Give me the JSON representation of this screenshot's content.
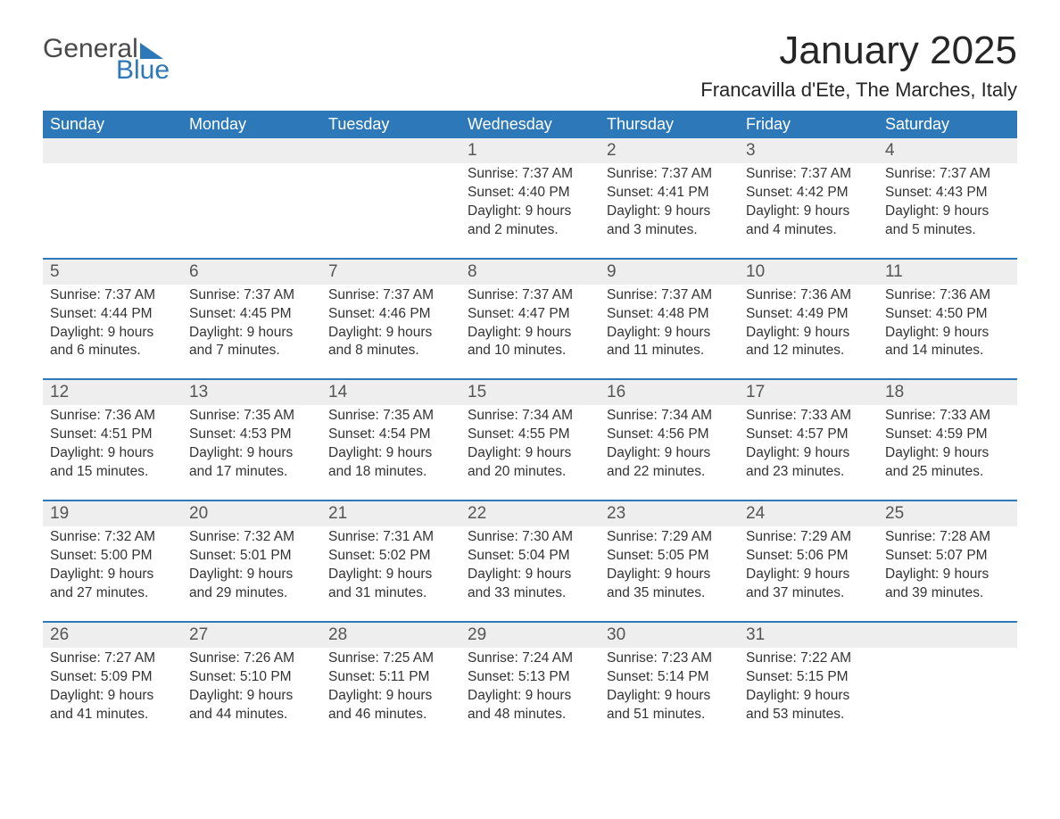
{
  "logo": {
    "line1": "General",
    "line2": "Blue"
  },
  "title": "January 2025",
  "subtitle": "Francavilla d'Ete, The Marches, Italy",
  "colors": {
    "header_bg": "#2d78b8",
    "header_text": "#ffffff",
    "daynum_bg": "#eeeeee",
    "row_border": "#2d78b8",
    "body_text": "#333333",
    "page_bg": "#ffffff",
    "logo_gray": "#4a4a4a",
    "logo_blue": "#2d78b8"
  },
  "typography": {
    "title_fontsize": 44,
    "subtitle_fontsize": 22,
    "header_fontsize": 18,
    "daynum_fontsize": 19,
    "body_fontsize": 15.5,
    "font_family": "Arial"
  },
  "weekdays": [
    "Sunday",
    "Monday",
    "Tuesday",
    "Wednesday",
    "Thursday",
    "Friday",
    "Saturday"
  ],
  "weeks": [
    [
      null,
      null,
      null,
      {
        "n": "1",
        "sunrise": "Sunrise: 7:37 AM",
        "sunset": "Sunset: 4:40 PM",
        "daylight": "Daylight: 9 hours and 2 minutes."
      },
      {
        "n": "2",
        "sunrise": "Sunrise: 7:37 AM",
        "sunset": "Sunset: 4:41 PM",
        "daylight": "Daylight: 9 hours and 3 minutes."
      },
      {
        "n": "3",
        "sunrise": "Sunrise: 7:37 AM",
        "sunset": "Sunset: 4:42 PM",
        "daylight": "Daylight: 9 hours and 4 minutes."
      },
      {
        "n": "4",
        "sunrise": "Sunrise: 7:37 AM",
        "sunset": "Sunset: 4:43 PM",
        "daylight": "Daylight: 9 hours and 5 minutes."
      }
    ],
    [
      {
        "n": "5",
        "sunrise": "Sunrise: 7:37 AM",
        "sunset": "Sunset: 4:44 PM",
        "daylight": "Daylight: 9 hours and 6 minutes."
      },
      {
        "n": "6",
        "sunrise": "Sunrise: 7:37 AM",
        "sunset": "Sunset: 4:45 PM",
        "daylight": "Daylight: 9 hours and 7 minutes."
      },
      {
        "n": "7",
        "sunrise": "Sunrise: 7:37 AM",
        "sunset": "Sunset: 4:46 PM",
        "daylight": "Daylight: 9 hours and 8 minutes."
      },
      {
        "n": "8",
        "sunrise": "Sunrise: 7:37 AM",
        "sunset": "Sunset: 4:47 PM",
        "daylight": "Daylight: 9 hours and 10 minutes."
      },
      {
        "n": "9",
        "sunrise": "Sunrise: 7:37 AM",
        "sunset": "Sunset: 4:48 PM",
        "daylight": "Daylight: 9 hours and 11 minutes."
      },
      {
        "n": "10",
        "sunrise": "Sunrise: 7:36 AM",
        "sunset": "Sunset: 4:49 PM",
        "daylight": "Daylight: 9 hours and 12 minutes."
      },
      {
        "n": "11",
        "sunrise": "Sunrise: 7:36 AM",
        "sunset": "Sunset: 4:50 PM",
        "daylight": "Daylight: 9 hours and 14 minutes."
      }
    ],
    [
      {
        "n": "12",
        "sunrise": "Sunrise: 7:36 AM",
        "sunset": "Sunset: 4:51 PM",
        "daylight": "Daylight: 9 hours and 15 minutes."
      },
      {
        "n": "13",
        "sunrise": "Sunrise: 7:35 AM",
        "sunset": "Sunset: 4:53 PM",
        "daylight": "Daylight: 9 hours and 17 minutes."
      },
      {
        "n": "14",
        "sunrise": "Sunrise: 7:35 AM",
        "sunset": "Sunset: 4:54 PM",
        "daylight": "Daylight: 9 hours and 18 minutes."
      },
      {
        "n": "15",
        "sunrise": "Sunrise: 7:34 AM",
        "sunset": "Sunset: 4:55 PM",
        "daylight": "Daylight: 9 hours and 20 minutes."
      },
      {
        "n": "16",
        "sunrise": "Sunrise: 7:34 AM",
        "sunset": "Sunset: 4:56 PM",
        "daylight": "Daylight: 9 hours and 22 minutes."
      },
      {
        "n": "17",
        "sunrise": "Sunrise: 7:33 AM",
        "sunset": "Sunset: 4:57 PM",
        "daylight": "Daylight: 9 hours and 23 minutes."
      },
      {
        "n": "18",
        "sunrise": "Sunrise: 7:33 AM",
        "sunset": "Sunset: 4:59 PM",
        "daylight": "Daylight: 9 hours and 25 minutes."
      }
    ],
    [
      {
        "n": "19",
        "sunrise": "Sunrise: 7:32 AM",
        "sunset": "Sunset: 5:00 PM",
        "daylight": "Daylight: 9 hours and 27 minutes."
      },
      {
        "n": "20",
        "sunrise": "Sunrise: 7:32 AM",
        "sunset": "Sunset: 5:01 PM",
        "daylight": "Daylight: 9 hours and 29 minutes."
      },
      {
        "n": "21",
        "sunrise": "Sunrise: 7:31 AM",
        "sunset": "Sunset: 5:02 PM",
        "daylight": "Daylight: 9 hours and 31 minutes."
      },
      {
        "n": "22",
        "sunrise": "Sunrise: 7:30 AM",
        "sunset": "Sunset: 5:04 PM",
        "daylight": "Daylight: 9 hours and 33 minutes."
      },
      {
        "n": "23",
        "sunrise": "Sunrise: 7:29 AM",
        "sunset": "Sunset: 5:05 PM",
        "daylight": "Daylight: 9 hours and 35 minutes."
      },
      {
        "n": "24",
        "sunrise": "Sunrise: 7:29 AM",
        "sunset": "Sunset: 5:06 PM",
        "daylight": "Daylight: 9 hours and 37 minutes."
      },
      {
        "n": "25",
        "sunrise": "Sunrise: 7:28 AM",
        "sunset": "Sunset: 5:07 PM",
        "daylight": "Daylight: 9 hours and 39 minutes."
      }
    ],
    [
      {
        "n": "26",
        "sunrise": "Sunrise: 7:27 AM",
        "sunset": "Sunset: 5:09 PM",
        "daylight": "Daylight: 9 hours and 41 minutes."
      },
      {
        "n": "27",
        "sunrise": "Sunrise: 7:26 AM",
        "sunset": "Sunset: 5:10 PM",
        "daylight": "Daylight: 9 hours and 44 minutes."
      },
      {
        "n": "28",
        "sunrise": "Sunrise: 7:25 AM",
        "sunset": "Sunset: 5:11 PM",
        "daylight": "Daylight: 9 hours and 46 minutes."
      },
      {
        "n": "29",
        "sunrise": "Sunrise: 7:24 AM",
        "sunset": "Sunset: 5:13 PM",
        "daylight": "Daylight: 9 hours and 48 minutes."
      },
      {
        "n": "30",
        "sunrise": "Sunrise: 7:23 AM",
        "sunset": "Sunset: 5:14 PM",
        "daylight": "Daylight: 9 hours and 51 minutes."
      },
      {
        "n": "31",
        "sunrise": "Sunrise: 7:22 AM",
        "sunset": "Sunset: 5:15 PM",
        "daylight": "Daylight: 9 hours and 53 minutes."
      },
      null
    ]
  ]
}
